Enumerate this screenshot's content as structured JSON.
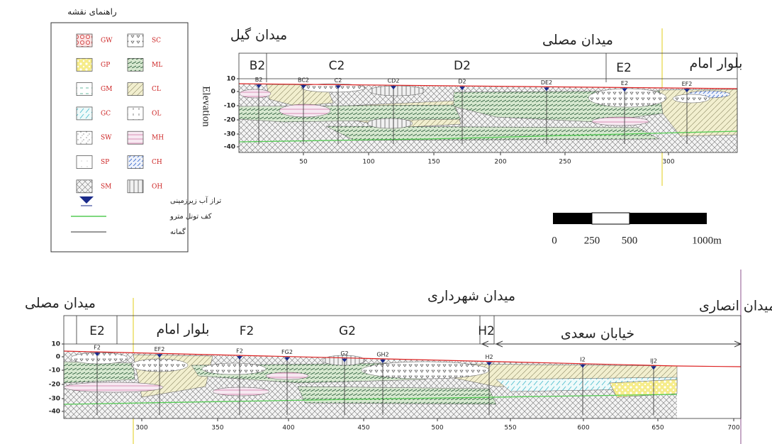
{
  "legend": {
    "title": "راهنمای نقشه",
    "left": [
      "GW",
      "GP",
      "GM",
      "GC",
      "SW",
      "SP",
      "SM"
    ],
    "right": [
      "SC",
      "ML",
      "CL",
      "OL",
      "MH",
      "CH",
      "OH"
    ],
    "symbols": [
      "تراز آب زیرزمینی",
      "کف تونل مترو",
      "گمانه"
    ]
  },
  "scale_bar": [
    "0",
    "250",
    "500",
    "1000m"
  ],
  "sections": [
    {
      "places": [
        "میدان گیل",
        "میدان مصلی",
        "بلوار امام"
      ],
      "zones": [
        "B2",
        "C2",
        "D2",
        "E2"
      ],
      "boreholes": [
        "B2",
        "BC2",
        "C2",
        "CD2",
        "D2",
        "DE2",
        "E2",
        "EF2"
      ],
      "y_axis_label": "Elevation",
      "yticks": [
        10,
        0,
        -10,
        -20,
        -30,
        -40
      ],
      "xticks": [
        50,
        100,
        150,
        200,
        250,
        300
      ]
    },
    {
      "places": [
        "میدان مصلی",
        "بلوار امام",
        "میدان شهرداری",
        "میدان انصاری",
        "خیابان سعدی"
      ],
      "zones": [
        "E2",
        "F2",
        "G2",
        "H2"
      ],
      "boreholes": [
        "F2",
        "EF2",
        "F2",
        "FG2",
        "G2",
        "GH2",
        "H2",
        "I2",
        "IJ2"
      ],
      "yticks": [
        10,
        0,
        -10,
        -20,
        -30,
        -40
      ],
      "xticks": [
        300,
        350,
        400,
        450,
        500,
        550,
        600,
        650,
        700
      ]
    }
  ]
}
